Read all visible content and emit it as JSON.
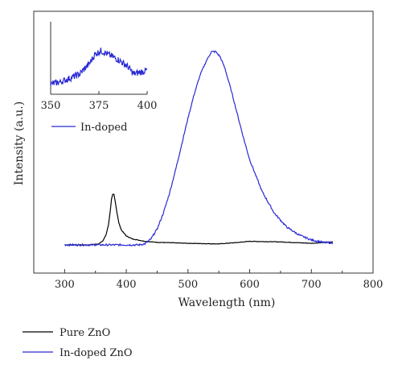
{
  "chart_data": {
    "type": "line",
    "xlabel": "Wavelength (nm)",
    "ylabel": "Intensity (a.u.)",
    "xlim": [
      250,
      800
    ],
    "xticks": [
      300,
      400,
      500,
      600,
      700,
      800
    ],
    "ylim": [
      0,
      100
    ],
    "y_tick_labels": false,
    "grid": false,
    "legend": {
      "placement": "below-plot",
      "entries": [
        "Pure ZnO",
        "In-doped ZnO"
      ]
    },
    "series": [
      {
        "name": "Pure ZnO",
        "color": "#000000",
        "points": [
          [
            300,
            0
          ],
          [
            340,
            0
          ],
          [
            355,
            0.5
          ],
          [
            362,
            2
          ],
          [
            367,
            5
          ],
          [
            371,
            10
          ],
          [
            374,
            17
          ],
          [
            376,
            23
          ],
          [
            378,
            25.5
          ],
          [
            380,
            25.5
          ],
          [
            382,
            22
          ],
          [
            385,
            16
          ],
          [
            388,
            11
          ],
          [
            392,
            7.5
          ],
          [
            400,
            4.5
          ],
          [
            410,
            3
          ],
          [
            430,
            1.8
          ],
          [
            450,
            1.3
          ],
          [
            500,
            0.8
          ],
          [
            550,
            0.5
          ],
          [
            580,
            1.2
          ],
          [
            600,
            1.8
          ],
          [
            650,
            1.5
          ],
          [
            700,
            0.8
          ],
          [
            720,
            1.2
          ],
          [
            735,
            1.5
          ]
        ]
      },
      {
        "name": "In-doped ZnO",
        "color": "#2a2ad4",
        "points": [
          [
            300,
            0
          ],
          [
            400,
            0
          ],
          [
            420,
            0
          ],
          [
            430,
            0.5
          ],
          [
            440,
            3
          ],
          [
            450,
            8
          ],
          [
            460,
            16
          ],
          [
            470,
            26
          ],
          [
            480,
            38
          ],
          [
            490,
            51
          ],
          [
            500,
            64
          ],
          [
            510,
            76
          ],
          [
            520,
            86
          ],
          [
            530,
            93
          ],
          [
            538,
            97.5
          ],
          [
            545,
            97.5
          ],
          [
            552,
            95
          ],
          [
            560,
            89
          ],
          [
            570,
            78
          ],
          [
            580,
            66
          ],
          [
            590,
            54
          ],
          [
            600,
            43
          ],
          [
            620,
            27
          ],
          [
            640,
            16
          ],
          [
            660,
            9
          ],
          [
            680,
            5
          ],
          [
            700,
            2.5
          ],
          [
            720,
            1.2
          ],
          [
            735,
            1
          ]
        ]
      }
    ],
    "inset": {
      "type": "line",
      "xlim": [
        350,
        400
      ],
      "xticks": [
        350,
        375,
        400
      ],
      "ylim": [
        0,
        100
      ],
      "legend_entry": "In-doped",
      "series": [
        {
          "name": "In-doped",
          "color": "#2a2ad4",
          "points": [
            [
              350,
              14
            ],
            [
              355,
              17
            ],
            [
              360,
              22
            ],
            [
              365,
              28
            ],
            [
              370,
              42
            ],
            [
              373,
              55
            ],
            [
              376,
              60
            ],
            [
              379,
              56
            ],
            [
              382,
              52
            ],
            [
              386,
              46
            ],
            [
              390,
              38
            ],
            [
              393,
              28
            ],
            [
              396,
              30
            ],
            [
              400,
              33
            ]
          ]
        }
      ]
    }
  }
}
